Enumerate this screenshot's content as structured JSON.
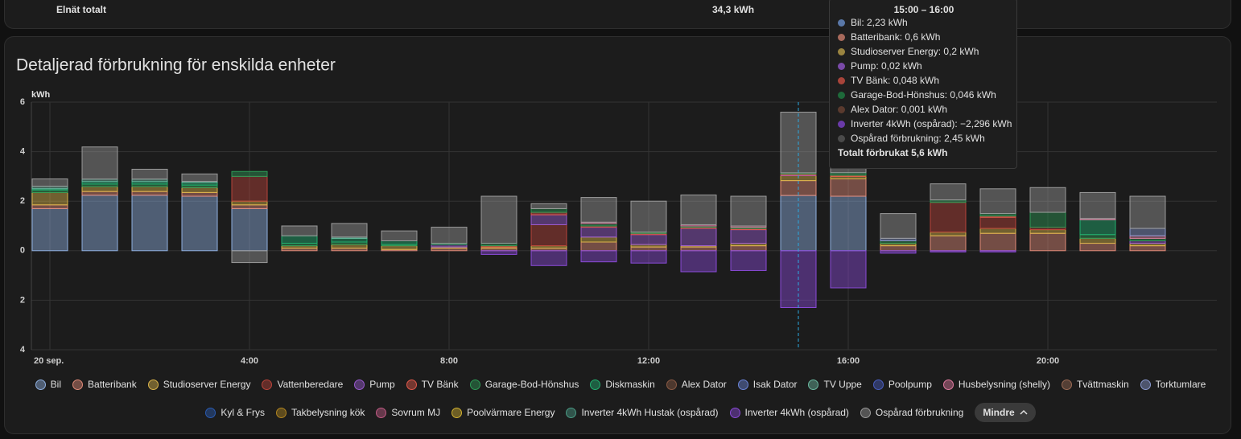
{
  "summary": {
    "label": "Elnät totalt",
    "value": "34,3 kWh"
  },
  "chart_data": {
    "type": "bar",
    "stacked": true,
    "title": "Detaljerad förbrukning för enskilda enheter",
    "ylabel": "kWh",
    "categories": [
      "20 sep.",
      null,
      null,
      null,
      "4:00",
      null,
      null,
      null,
      "8:00",
      null,
      null,
      null,
      "12:00",
      null,
      null,
      null,
      "16:00",
      null,
      null,
      null,
      "20:00",
      null,
      null
    ],
    "ylim": [
      -4,
      6
    ],
    "yticks": [
      {
        "value": -4,
        "label": "4"
      },
      {
        "value": -2,
        "label": "2"
      },
      0,
      2,
      4,
      6
    ],
    "grid": true,
    "series": [
      {
        "name": "Bil",
        "color": "#8fb0e0",
        "values": [
          1.7,
          2.24,
          2.24,
          2.2,
          1.7,
          0,
          0,
          0,
          0,
          0,
          0,
          0,
          0,
          0,
          0,
          2.23,
          2.2,
          0,
          0,
          0,
          0,
          0,
          0
        ]
      },
      {
        "name": "Batteribank",
        "color": "#e08a78",
        "values": [
          0.15,
          0.15,
          0.15,
          0.15,
          0.15,
          0.1,
          0.1,
          0.05,
          0.1,
          0.1,
          0.1,
          0.35,
          0.15,
          0.15,
          0.2,
          0.6,
          0.7,
          0.2,
          0.6,
          0.7,
          0.7,
          0.3,
          0.2
        ]
      },
      {
        "name": "Studioserver Energy",
        "color": "#d9b34a",
        "values": [
          0.5,
          0.2,
          0.2,
          0.2,
          0.15,
          0.1,
          0.15,
          0.15,
          0.05,
          0.05,
          0.1,
          0.2,
          0.1,
          0.05,
          0.1,
          0.2,
          0.1,
          0.1,
          0.15,
          0.2,
          0.15,
          0.2,
          0.1
        ]
      },
      {
        "name": "Vattenberedare",
        "color": "#b8433a",
        "values": [
          0,
          0,
          0,
          0,
          1.0,
          0,
          0,
          0,
          0,
          0,
          0.85,
          0,
          0,
          0,
          0,
          0,
          0,
          0,
          1.2,
          0.45,
          0.1,
          0,
          0
        ]
      },
      {
        "name": "Pump",
        "color": "#9a5ad0",
        "values": [
          0,
          0,
          0,
          0,
          0,
          0,
          0,
          0,
          0.1,
          0,
          0.4,
          0.4,
          0.4,
          0.7,
          0.55,
          0.02,
          0,
          0,
          0,
          0,
          0,
          0,
          0.1
        ]
      },
      {
        "name": "TV Bänk",
        "color": "#e0584a",
        "values": [
          0,
          0,
          0,
          0,
          0,
          0,
          0,
          0,
          0,
          0.05,
          0.1,
          0.05,
          0.05,
          0.05,
          0.05,
          0.048,
          0.05,
          0,
          0,
          0.05,
          0,
          0,
          0
        ]
      },
      {
        "name": "Garage-Bod-Hönshus",
        "color": "#2e9a56",
        "values": [
          0.1,
          0.1,
          0.1,
          0.1,
          0.2,
          0.1,
          0.1,
          0.05,
          0.05,
          0.1,
          0.15,
          0.1,
          0.05,
          0.05,
          0.05,
          0.046,
          0.1,
          0.1,
          0.1,
          0.1,
          0.6,
          0.15,
          0.1
        ]
      },
      {
        "name": "Diskmaskin",
        "color": "#22b070",
        "values": [
          0.05,
          0.1,
          0.1,
          0.1,
          0,
          0.3,
          0.15,
          0.15,
          0,
          0,
          0,
          0,
          0,
          0,
          0,
          0,
          0,
          0,
          0,
          0,
          0,
          0.6,
          0
        ]
      },
      {
        "name": "Alex Dator",
        "color": "#8a5a44",
        "values": [
          0,
          0,
          0,
          0,
          0,
          0,
          0,
          0,
          0,
          0,
          0,
          0,
          0,
          0,
          0,
          0.001,
          0,
          0,
          0,
          0,
          0,
          0,
          0
        ]
      },
      {
        "name": "Isak Dator",
        "color": "#6a84d8",
        "values": [
          0,
          0,
          0,
          0,
          0,
          0,
          0,
          0,
          0,
          0,
          0,
          0,
          0,
          0,
          0,
          0,
          0,
          0,
          0,
          0,
          0,
          0,
          0
        ]
      },
      {
        "name": "TV Uppe",
        "color": "#6ab8a0",
        "values": [
          0.1,
          0.1,
          0.1,
          0.05,
          0,
          0,
          0.05,
          0,
          0,
          0,
          0,
          0,
          0,
          0,
          0,
          0,
          0,
          0,
          0,
          0,
          0,
          0,
          0
        ]
      },
      {
        "name": "Poolpump",
        "color": "#4a5ec0",
        "values": [
          0,
          0,
          0,
          0,
          0,
          0,
          0,
          0,
          0,
          0,
          0,
          0,
          0,
          0,
          0,
          0,
          0,
          0,
          0,
          0,
          0,
          0,
          0
        ]
      },
      {
        "name": "Husbelysning (shelly)",
        "color": "#e07aa0",
        "values": [
          0,
          0,
          0,
          0,
          0,
          0,
          0,
          0,
          0,
          0,
          0,
          0.05,
          0,
          0.05,
          0.05,
          0,
          0,
          0,
          0,
          0,
          0,
          0.05,
          0.1
        ]
      },
      {
        "name": "Tvättmaskin",
        "color": "#9a6a54",
        "values": [
          0,
          0,
          0,
          0,
          0,
          0,
          0,
          0,
          0,
          0,
          0,
          0,
          0,
          0,
          0,
          0,
          0,
          0,
          0,
          0,
          0,
          0,
          0
        ]
      },
      {
        "name": "Torktumlare",
        "color": "#8a9ad0",
        "values": [
          0,
          0,
          0,
          0,
          0,
          0,
          0,
          0,
          0,
          0,
          0,
          0,
          0,
          0,
          0,
          0,
          0,
          0.1,
          0,
          0,
          0,
          0,
          0.3
        ]
      },
      {
        "name": "Kyl & Frys",
        "color": "#2a5ab0",
        "values": [
          0,
          0,
          0,
          0,
          0,
          0,
          0,
          0,
          0,
          0,
          0,
          0,
          0,
          0,
          0,
          0,
          0,
          0,
          0,
          0,
          0,
          0,
          0
        ]
      },
      {
        "name": "Takbelysning kök",
        "color": "#b08420",
        "values": [
          0,
          0,
          0,
          0,
          0,
          0,
          0,
          0,
          0,
          0,
          0,
          0,
          0,
          0,
          0,
          0,
          0,
          0,
          0,
          0,
          0,
          0,
          0
        ]
      },
      {
        "name": "Sovrum MJ",
        "color": "#c05a84",
        "values": [
          0,
          0,
          0,
          0,
          0,
          0,
          0,
          0,
          0,
          0,
          0,
          0,
          0,
          0,
          0,
          0,
          0,
          0,
          0,
          0,
          0,
          0,
          0
        ]
      },
      {
        "name": "Poolvärmare Energy",
        "color": "#d0b030",
        "values": [
          0,
          0,
          0,
          0,
          0,
          0,
          0,
          0,
          0,
          0,
          0,
          0,
          0,
          0,
          0,
          0,
          0,
          0,
          0,
          0,
          0,
          0,
          0
        ]
      },
      {
        "name": "Inverter 4kWh Hustak (ospårad)",
        "color": "#4a9a84",
        "values": [
          0,
          0,
          0,
          0,
          0,
          0,
          0,
          0,
          0,
          0,
          0,
          0,
          0,
          0,
          0,
          0,
          0,
          0,
          0,
          0,
          0,
          0,
          0
        ]
      },
      {
        "name": "Inverter 4kWh (ospårad)",
        "color": "#8a4ad8",
        "values": [
          0,
          0,
          0,
          0,
          0,
          0,
          0,
          0,
          0,
          -0.15,
          -0.6,
          -0.45,
          -0.5,
          -0.85,
          -0.8,
          -2.296,
          -1.5,
          -0.1,
          -0.05,
          -0.05,
          0,
          0,
          0
        ]
      },
      {
        "name": "Ospårad förbrukning",
        "color": "#9a9a9a",
        "values": [
          0.3,
          1.3,
          0.4,
          0.3,
          -0.48,
          0.4,
          0.55,
          0.4,
          0.65,
          1.9,
          0.2,
          1.0,
          1.25,
          1.2,
          1.2,
          2.45,
          0.3,
          1.0,
          0.65,
          1.0,
          1.0,
          1.05,
          1.3
        ]
      }
    ]
  },
  "tooltip": {
    "title": "15:00 – 16:00",
    "items": [
      "Bil: 2,23 kWh",
      "Batteribank: 0,6 kWh",
      "Studioserver Energy: 0,2 kWh",
      "Pump: 0,02 kWh",
      "TV Bänk: 0,048 kWh",
      "Garage-Bod-Hönshus: 0,046 kWh",
      "Alex Dator: 0,001 kWh",
      "Inverter 4kWh (ospårad): −2,296 kWh",
      "Ospårad förbrukning: 2,45 kWh"
    ],
    "total": "Totalt förbrukat 5,6 kWh"
  },
  "button": "Mindre"
}
